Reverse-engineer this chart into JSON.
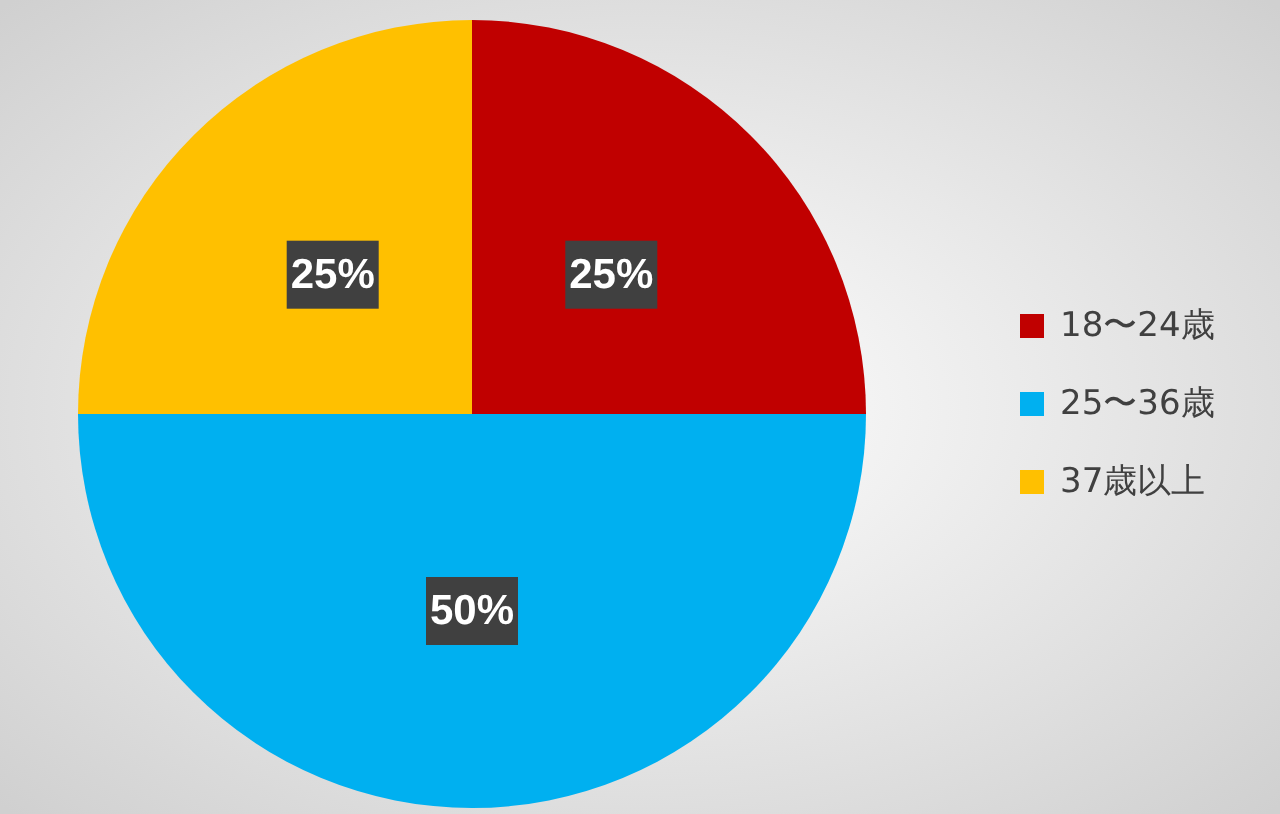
{
  "chart_data": {
    "type": "pie",
    "categories": [
      "18〜24歳",
      "25〜36歳",
      "37歳以上"
    ],
    "values": [
      25,
      50,
      25
    ],
    "colors": [
      "#c00000",
      "#00b0f0",
      "#ffc000"
    ],
    "value_labels": [
      "25%",
      "50%",
      "25%"
    ],
    "legend": "right"
  }
}
